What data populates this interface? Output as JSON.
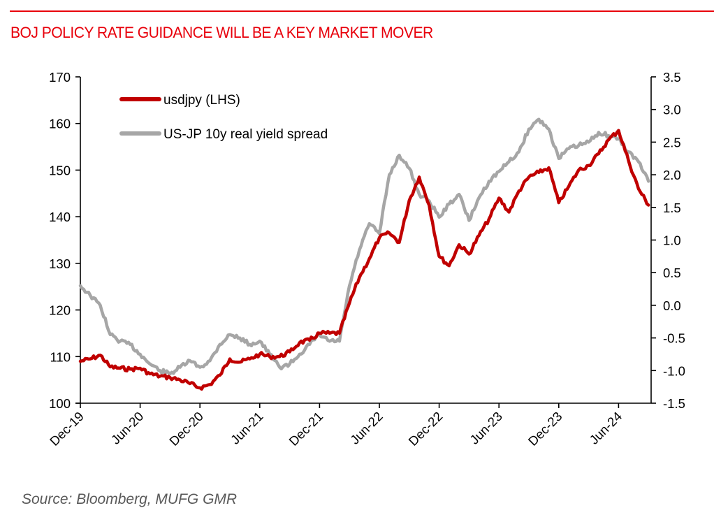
{
  "header": {
    "title": "BOJ POLICY RATE GUIDANCE WILL BE A KEY MARKET MOVER"
  },
  "footer": {
    "source": "Source: Bloomberg, MUFG GMR"
  },
  "colors": {
    "accent": "#e8000b",
    "usdjpy": "#c00000",
    "spread": "#a6a6a6"
  },
  "chart_data": {
    "type": "line",
    "title": "BOJ POLICY RATE GUIDANCE WILL BE A KEY MARKET MOVER",
    "xlabel": "",
    "ylabel_left": "",
    "ylabel_right": "",
    "grid": false,
    "legend_position": "top-left",
    "x_tick_labels": [
      "Dec-19",
      "Jun-20",
      "Dec-20",
      "Jun-21",
      "Dec-21",
      "Jun-22",
      "Dec-22",
      "Jun-23",
      "Dec-23",
      "Jun-24"
    ],
    "y_left": {
      "range": [
        100,
        170
      ],
      "ticks": [
        "100",
        "110",
        "120",
        "130",
        "140",
        "150",
        "160",
        "170"
      ]
    },
    "y_right": {
      "range": [
        -1.5,
        3.5
      ],
      "ticks": [
        "-1.5",
        "-1.0",
        "-0.5",
        "0.0",
        "0.5",
        "1.0",
        "1.5",
        "2.0",
        "2.5",
        "3.0",
        "3.5"
      ]
    },
    "x_months_from_dec19": [
      0,
      1,
      2,
      3,
      4,
      5,
      6,
      7,
      8,
      9,
      10,
      11,
      12,
      13,
      14,
      15,
      16,
      17,
      18,
      19,
      20,
      21,
      22,
      23,
      24,
      25,
      26,
      27,
      28,
      29,
      30,
      31,
      32,
      33,
      34,
      35,
      36,
      37,
      38,
      39,
      40,
      41,
      42,
      43,
      44,
      45,
      46,
      47,
      48,
      49,
      50,
      51,
      52,
      53,
      54,
      55,
      56,
      57
    ],
    "x_dates": [
      "Dec-19",
      "Jan-20",
      "Feb-20",
      "Mar-20",
      "Apr-20",
      "May-20",
      "Jun-20",
      "Jul-20",
      "Aug-20",
      "Sep-20",
      "Oct-20",
      "Nov-20",
      "Dec-20",
      "Jan-21",
      "Feb-21",
      "Mar-21",
      "Apr-21",
      "May-21",
      "Jun-21",
      "Jul-21",
      "Aug-21",
      "Sep-21",
      "Oct-21",
      "Nov-21",
      "Dec-21",
      "Jan-22",
      "Feb-22",
      "Mar-22",
      "Apr-22",
      "May-22",
      "Jun-22",
      "Jul-22",
      "Aug-22",
      "Sep-22",
      "Oct-22",
      "Nov-22",
      "Dec-22",
      "Jan-23",
      "Feb-23",
      "Mar-23",
      "Apr-23",
      "May-23",
      "Jun-23",
      "Jul-23",
      "Aug-23",
      "Sep-23",
      "Oct-23",
      "Nov-23",
      "Dec-23",
      "Jan-24",
      "Feb-24",
      "Mar-24",
      "Apr-24",
      "May-24",
      "Jun-24",
      "Jul-24",
      "Aug-24",
      "Sep-24"
    ],
    "series": [
      {
        "name": "usdjpy (LHS)",
        "axis": "left",
        "color": "#c00000",
        "values": [
          109.0,
          109.5,
          110.3,
          107.8,
          107.5,
          107.3,
          107.5,
          106.3,
          105.8,
          105.5,
          105.0,
          104.2,
          103.3,
          104.0,
          106.0,
          109.5,
          108.8,
          109.5,
          110.5,
          110.0,
          110.0,
          111.0,
          113.0,
          113.5,
          115.0,
          115.0,
          115.0,
          121.5,
          127.0,
          131.0,
          135.5,
          136.5,
          134.5,
          143.5,
          148.5,
          142.5,
          131.5,
          129.5,
          134.0,
          132.0,
          136.0,
          139.5,
          144.0,
          141.0,
          145.5,
          148.5,
          149.5,
          150.5,
          143.0,
          146.5,
          150.0,
          151.0,
          153.5,
          156.5,
          158.5,
          152.0,
          146.0,
          142.5
        ]
      },
      {
        "name": "US-JP 10y real yield spread",
        "axis": "right",
        "color": "#a6a6a6",
        "values": [
          0.3,
          0.15,
          0.0,
          -0.45,
          -0.55,
          -0.6,
          -0.75,
          -0.9,
          -1.0,
          -1.05,
          -0.95,
          -0.85,
          -0.95,
          -0.85,
          -0.6,
          -0.45,
          -0.5,
          -0.6,
          -0.55,
          -0.75,
          -0.95,
          -0.9,
          -0.75,
          -0.6,
          -0.45,
          -0.55,
          -0.55,
          0.3,
          0.85,
          1.25,
          1.1,
          2.0,
          2.3,
          2.1,
          1.7,
          1.6,
          1.35,
          1.55,
          1.7,
          1.3,
          1.65,
          1.9,
          2.05,
          2.2,
          2.35,
          2.7,
          2.85,
          2.7,
          2.25,
          2.4,
          2.45,
          2.5,
          2.65,
          2.6,
          2.55,
          2.35,
          2.2,
          1.9
        ]
      }
    ]
  }
}
